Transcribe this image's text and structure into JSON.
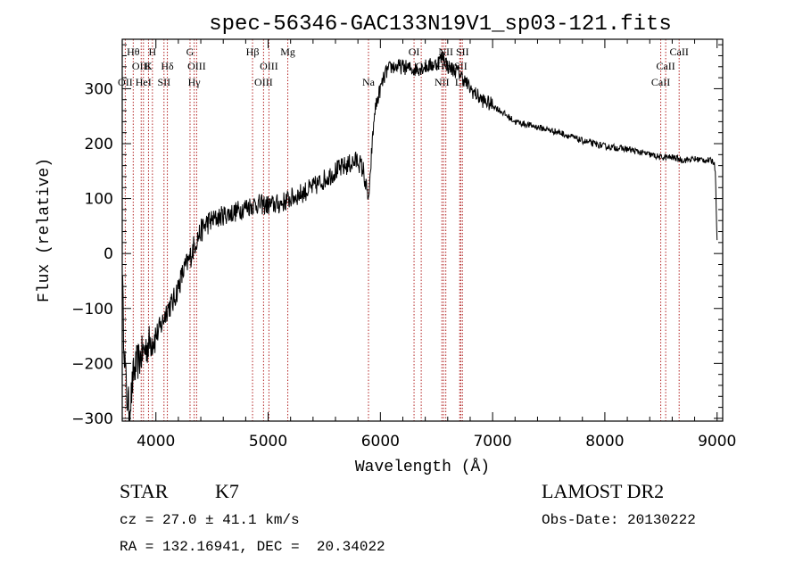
{
  "chart_data": {
    "type": "line",
    "title": "spec-56346-GAC133N19V1_sp03-121.fits",
    "xlabel": "Wavelength (Å)",
    "ylabel": "Flux (relative)",
    "xlim": [
      3700,
      9050
    ],
    "ylim": [
      -305,
      390
    ],
    "x_ticks": [
      4000,
      5000,
      6000,
      7000,
      8000,
      9000
    ],
    "y_ticks": [
      -300,
      -200,
      -100,
      0,
      100,
      200,
      300
    ],
    "grid": false,
    "line_color": "#000000",
    "marker_color": "#b22222",
    "spectrum_anchor_points": [
      [
        3700,
        -20
      ],
      [
        3710,
        -130
      ],
      [
        3725,
        -200
      ],
      [
        3740,
        -260
      ],
      [
        3760,
        -280
      ],
      [
        3780,
        -260
      ],
      [
        3800,
        -220
      ],
      [
        3830,
        -200
      ],
      [
        3860,
        -190
      ],
      [
        3900,
        -175
      ],
      [
        3950,
        -160
      ],
      [
        4000,
        -150
      ],
      [
        4050,
        -130
      ],
      [
        4100,
        -100
      ],
      [
        4150,
        -90
      ],
      [
        4200,
        -60
      ],
      [
        4250,
        -30
      ],
      [
        4300,
        -10
      ],
      [
        4350,
        20
      ],
      [
        4400,
        40
      ],
      [
        4450,
        55
      ],
      [
        4500,
        60
      ],
      [
        4600,
        70
      ],
      [
        4700,
        75
      ],
      [
        4800,
        85
      ],
      [
        4900,
        90
      ],
      [
        5000,
        88
      ],
      [
        5100,
        90
      ],
      [
        5200,
        100
      ],
      [
        5300,
        110
      ],
      [
        5400,
        120
      ],
      [
        5500,
        135
      ],
      [
        5600,
        150
      ],
      [
        5700,
        160
      ],
      [
        5800,
        170
      ],
      [
        5850,
        150
      ],
      [
        5880,
        110
      ],
      [
        5900,
        100
      ],
      [
        5920,
        180
      ],
      [
        5950,
        260
      ],
      [
        6000,
        300
      ],
      [
        6050,
        330
      ],
      [
        6100,
        340
      ],
      [
        6200,
        340
      ],
      [
        6300,
        335
      ],
      [
        6400,
        340
      ],
      [
        6500,
        345
      ],
      [
        6560,
        360
      ],
      [
        6600,
        340
      ],
      [
        6700,
        330
      ],
      [
        6800,
        300
      ],
      [
        6900,
        280
      ],
      [
        7000,
        270
      ],
      [
        7100,
        255
      ],
      [
        7200,
        240
      ],
      [
        7400,
        230
      ],
      [
        7600,
        220
      ],
      [
        7800,
        205
      ],
      [
        8000,
        195
      ],
      [
        8200,
        190
      ],
      [
        8400,
        180
      ],
      [
        8500,
        175
      ],
      [
        8600,
        175
      ],
      [
        8700,
        170
      ],
      [
        8800,
        172
      ],
      [
        8900,
        170
      ],
      [
        8970,
        168
      ],
      [
        8985,
        150
      ],
      [
        9000,
        20
      ]
    ],
    "spectral_lines": [
      {
        "wave": 3727,
        "labels": [
          "OII"
        ],
        "row": 3
      },
      {
        "wave": 3798,
        "labels": [
          "Hθ"
        ],
        "row": 1
      },
      {
        "wave": 3869,
        "labels": [
          "OIII"
        ],
        "row": 2
      },
      {
        "wave": 3889,
        "labels": [
          "HeI"
        ],
        "row": 3
      },
      {
        "wave": 3934,
        "labels": [
          "K"
        ],
        "row": 2
      },
      {
        "wave": 3969,
        "labels": [
          "H"
        ],
        "row": 1
      },
      {
        "wave": 4072,
        "labels": [
          "SII"
        ],
        "row": 3
      },
      {
        "wave": 4102,
        "labels": [
          "Hδ"
        ],
        "row": 2
      },
      {
        "wave": 4304,
        "labels": [
          "G"
        ],
        "row": 1
      },
      {
        "wave": 4341,
        "labels": [
          "Hγ"
        ],
        "row": 3
      },
      {
        "wave": 4363,
        "labels": [
          "OIII"
        ],
        "row": 2
      },
      {
        "wave": 4861,
        "labels": [
          "Hβ"
        ],
        "row": 1
      },
      {
        "wave": 4959,
        "labels": [
          "OIII"
        ],
        "row": 3
      },
      {
        "wave": 5007,
        "labels": [
          "OIII"
        ],
        "row": 2
      },
      {
        "wave": 5175,
        "labels": [
          "Mg"
        ],
        "row": 1
      },
      {
        "wave": 5894,
        "labels": [
          "Na"
        ],
        "row": 3
      },
      {
        "wave": 6300,
        "labels": [
          "OI"
        ],
        "row": 1
      },
      {
        "wave": 6364,
        "labels": [
          "OI"
        ],
        "row": 2
      },
      {
        "wave": 6548,
        "labels": [
          "NII"
        ],
        "row": 3
      },
      {
        "wave": 6563,
        "labels": [
          "Hα"
        ],
        "row": 2
      },
      {
        "wave": 6583,
        "labels": [
          "NII"
        ],
        "row": 1
      },
      {
        "wave": 6707,
        "labels": [
          "Li"
        ],
        "row": 3
      },
      {
        "wave": 6716,
        "labels": [
          "SII"
        ],
        "row": 2
      },
      {
        "wave": 6731,
        "labels": [
          "SII"
        ],
        "row": 1
      },
      {
        "wave": 8498,
        "labels": [
          "CaII"
        ],
        "row": 3
      },
      {
        "wave": 8542,
        "labels": [
          "CaII"
        ],
        "row": 2
      },
      {
        "wave": 8662,
        "labels": [
          "CaII"
        ],
        "row": 1
      }
    ]
  },
  "footer": {
    "class_label": "STAR",
    "subclass": "K7",
    "survey": "LAMOST DR2",
    "redshift": "cz = 27.0 ± 41.1 km/s",
    "obs_date": "Obs-Date: 20130222",
    "coords": "RA = 132.16941, DEC =  20.34022"
  }
}
